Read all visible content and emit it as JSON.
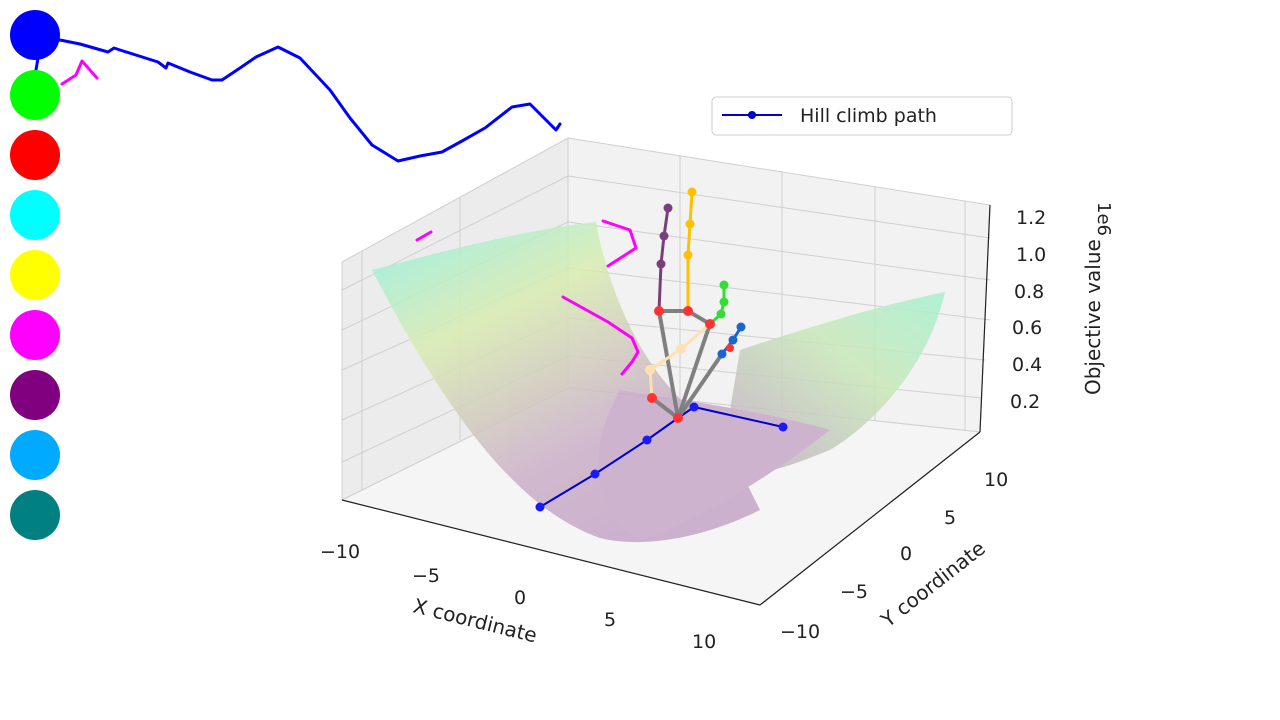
{
  "palette": {
    "colors": [
      {
        "name": "blue",
        "hex": "#0000ff"
      },
      {
        "name": "green",
        "hex": "#00ff00"
      },
      {
        "name": "red",
        "hex": "#ff0000"
      },
      {
        "name": "cyan",
        "hex": "#00ffff"
      },
      {
        "name": "yellow",
        "hex": "#ffff00"
      },
      {
        "name": "magenta",
        "hex": "#ff00ff"
      },
      {
        "name": "purple",
        "hex": "#800080"
      },
      {
        "name": "sky-blue",
        "hex": "#00aaff"
      },
      {
        "name": "teal",
        "hex": "#008080"
      }
    ]
  },
  "chart_data": {
    "type": "surface-3d",
    "legend": {
      "label": "Hill climb path",
      "placement": "top-right",
      "color": "#0000cc"
    },
    "x_axis": {
      "label": "X coordinate",
      "ticks": [
        "−10",
        "−5",
        "0",
        "5",
        "10"
      ],
      "range": [
        -10,
        10
      ]
    },
    "y_axis": {
      "label": "Y coordinate",
      "ticks": [
        "−10",
        "−5",
        "0",
        "5",
        "10"
      ],
      "range": [
        -10,
        10
      ]
    },
    "z_axis": {
      "label": "Objective value",
      "multiplier": "1e6",
      "ticks": [
        "0.2",
        "0.4",
        "0.6",
        "0.8",
        "1.0",
        "1.2"
      ],
      "range": [
        0.2,
        1.2
      ]
    },
    "surface": {
      "colormap": "viridis-like (purple→green→cyan)",
      "shape": "paraboloid bowl"
    },
    "grid": true,
    "series": [
      {
        "name": "Hill climb path",
        "color": "#0000cc"
      }
    ]
  },
  "annotations": {
    "stroke_colors": {
      "scribble": "#0000ff",
      "marker": "#ff00ff",
      "skeleton_bone": "#808080",
      "skeleton_joint": "#ff3333",
      "finger_thumb": "#ffe0b0",
      "finger_index": "#7a3f7a",
      "finger_middle": "#ffc000",
      "finger_ring": "#33dd33",
      "finger_pinky": "#1a66cc"
    }
  }
}
